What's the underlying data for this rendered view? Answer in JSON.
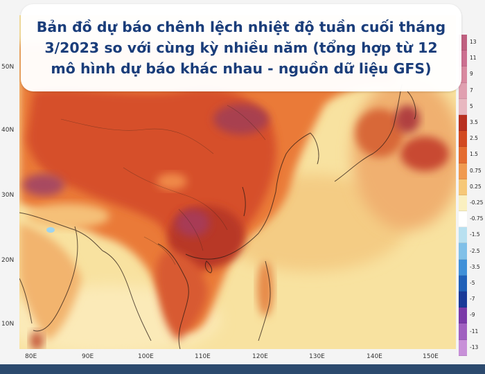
{
  "title": "Bản đồ dự báo chênh lệch nhiệt độ tuần cuối tháng 3/2023 so với cùng kỳ nhiều năm (tổng hợp từ 12 mô hình dự báo khác nhau - nguồn dữ liệu GFS)",
  "latitude_labels": [
    "50N",
    "40N",
    "30N",
    "20N",
    "10N"
  ],
  "longitude_labels": [
    "80E",
    "90E",
    "100E",
    "110E",
    "120E",
    "130E",
    "140E",
    "150E"
  ],
  "color_scale": {
    "labels": [
      "13",
      "11",
      "9",
      "7",
      "5",
      "3.5",
      "2.5",
      "1.5",
      "0.75",
      "0.25",
      "-0.25",
      "-0.75",
      "-1.5",
      "-2.5",
      "-3.5",
      "-5",
      "-7",
      "-9",
      "-11",
      "-13"
    ],
    "colors": [
      "#c06080",
      "#cc7090",
      "#d98aa0",
      "#e0a0b0",
      "#e8b8c0",
      "#b83020",
      "#d24a22",
      "#e46c30",
      "#f09a50",
      "#f6c878",
      "#faf0c0",
      "#ffffff",
      "#b8e0f0",
      "#80c0e8",
      "#4090d8",
      "#2060b8",
      "#1a3a98",
      "#7a3aa8",
      "#a060c0",
      "#c890d8"
    ]
  },
  "colors": {
    "map_background": "#f8e6a8",
    "ocean_warm": "#f6d48a",
    "land_hot": "#d24a22",
    "land_very_hot": "#b83020",
    "hotspot": "#a83a55",
    "title_text": "#1a3d7a",
    "bottom_bar": "#2c4a6e"
  }
}
